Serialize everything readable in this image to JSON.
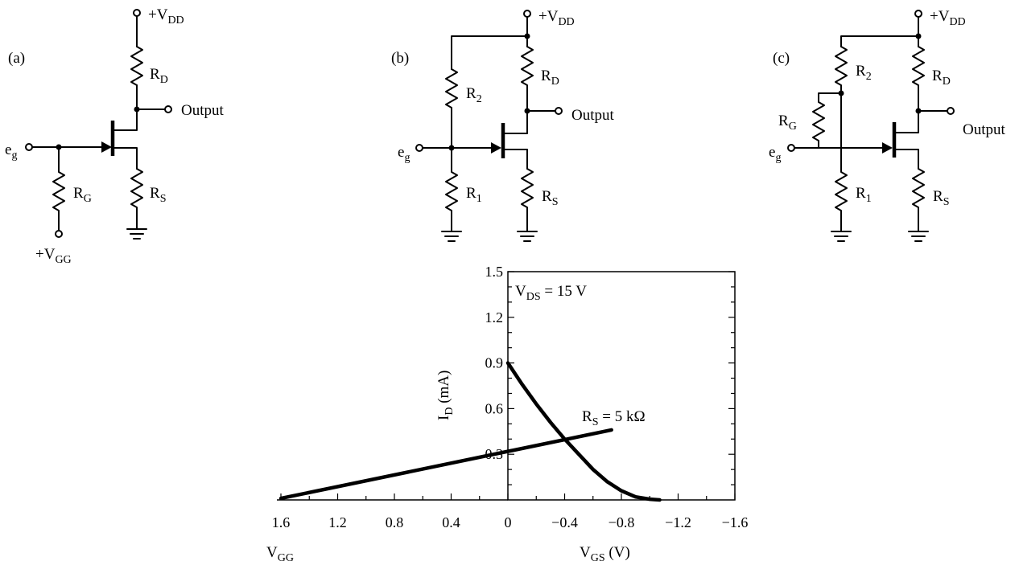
{
  "circuits": {
    "a": {
      "tag": "(a)",
      "vdd": "+V",
      "vdd_sub": "DD",
      "rd": "R",
      "rd_sub": "D",
      "rs": "R",
      "rs_sub": "S",
      "rg": "R",
      "rg_sub": "G",
      "input": "e",
      "input_sub": "g",
      "output": "Output",
      "vgg": "+V",
      "vgg_sub": "GG"
    },
    "b": {
      "tag": "(b)",
      "vdd": "+V",
      "vdd_sub": "DD",
      "rd": "R",
      "rd_sub": "D",
      "rs": "R",
      "rs_sub": "S",
      "r1": "R",
      "r1_sub": "1",
      "r2": "R",
      "r2_sub": "2",
      "input": "e",
      "input_sub": "g",
      "output": "Output"
    },
    "c": {
      "tag": "(c)",
      "vdd": "+V",
      "vdd_sub": "DD",
      "rd": "R",
      "rd_sub": "D",
      "rs": "R",
      "rs_sub": "S",
      "r1": "R",
      "r1_sub": "1",
      "r2": "R",
      "r2_sub": "2",
      "rg": "R",
      "rg_sub": "G",
      "input": "e",
      "input_sub": "g",
      "output": "Output"
    }
  },
  "chart_data": {
    "type": "line",
    "annotation_vds": {
      "main": "V",
      "sub": "DS",
      "rest": " = 15 V"
    },
    "annotation_rs": {
      "main": "R",
      "sub": "S",
      "rest": " = 5 kΩ"
    },
    "ylabel": {
      "main": "I",
      "sub": "D",
      "rest": " (mA)"
    },
    "xlabel": {
      "main": "V",
      "sub": "GS",
      "rest": " (V)"
    },
    "xlabel_left": {
      "main": "V",
      "sub": "GG"
    },
    "x_ticks": [
      "1.6",
      "1.2",
      "0.8",
      "0.4",
      "0",
      "−0.4",
      "−0.8",
      "−1.2",
      "−1.6"
    ],
    "x_tick_values": [
      1.6,
      1.2,
      0.8,
      0.4,
      0,
      -0.4,
      -0.8,
      -1.2,
      -1.6
    ],
    "y_ticks": [
      "0.3",
      "0.6",
      "0.9",
      "1.2",
      "1.5"
    ],
    "y_tick_values": [
      0.3,
      0.6,
      0.9,
      1.2,
      1.5
    ],
    "y_minor_step": 0.1,
    "xlim": [
      1.6,
      -1.6
    ],
    "ylim": [
      0,
      1.5
    ],
    "series": [
      {
        "values_x": [
          0,
          -0.1,
          -0.2,
          -0.3,
          -0.4,
          -0.5,
          -0.6,
          -0.7,
          -0.8,
          -0.9,
          -1.0,
          -1.07
        ],
        "values_y": [
          0.9,
          0.76,
          0.63,
          0.51,
          0.4,
          0.3,
          0.2,
          0.12,
          0.06,
          0.02,
          0.005,
          0.0
        ]
      },
      {
        "values_x": [
          1.6,
          -0.73
        ],
        "values_y": [
          0.01,
          0.46
        ]
      }
    ]
  }
}
